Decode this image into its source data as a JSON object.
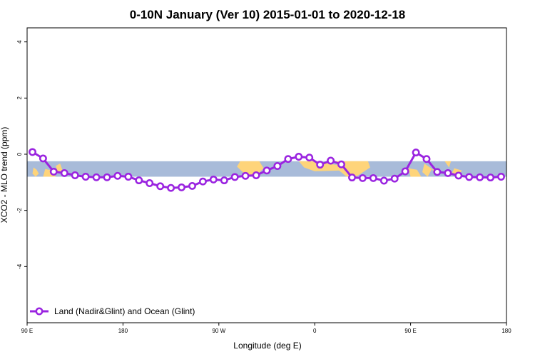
{
  "chart_data": {
    "type": "line",
    "title": "0-10N January (Ver 10)   2015-01-01 to 2020-12-18",
    "xlabel": "Longitude (deg E)",
    "ylabel": "XCO2 - MLO trend (ppm)",
    "xlim": [
      0,
      450
    ],
    "ylim": [
      -6,
      4.5
    ],
    "x_ticks": [
      {
        "value": 0,
        "label": "90 E"
      },
      {
        "value": 90,
        "label": "180"
      },
      {
        "value": 180,
        "label": "90 W"
      },
      {
        "value": 270,
        "label": "0"
      },
      {
        "value": 360,
        "label": "90 E"
      },
      {
        "value": 450,
        "label": "180"
      }
    ],
    "y_ticks": [
      {
        "value": -4,
        "label": "-4"
      },
      {
        "value": -2,
        "label": "-2"
      },
      {
        "value": 0,
        "label": "0"
      },
      {
        "value": 2,
        "label": "2"
      },
      {
        "value": 4,
        "label": "4"
      }
    ],
    "grid": false,
    "legend_position": "bottom-left",
    "background_band": {
      "y_range": [
        -0.8,
        -0.25
      ],
      "ocean_color": "#a8bbd9",
      "land_color": "#fed47a"
    },
    "series": [
      {
        "name": "Land (Nadir&Glint) and Ocean (Glint)",
        "color": "#9a24e0",
        "marker": "open-circle",
        "x": [
          5,
          15,
          25,
          35,
          45,
          55,
          65,
          75,
          85,
          95,
          105,
          115,
          125,
          135,
          145,
          155,
          165,
          175,
          185,
          195,
          205,
          215,
          225,
          235,
          245,
          255,
          265,
          275,
          285,
          295,
          305,
          315,
          325,
          335,
          345,
          355,
          365,
          375,
          385,
          395,
          405,
          415,
          425,
          435,
          445
        ],
        "y": [
          0.08,
          -0.15,
          -0.62,
          -0.67,
          -0.75,
          -0.8,
          -0.82,
          -0.82,
          -0.77,
          -0.8,
          -0.93,
          -1.03,
          -1.14,
          -1.2,
          -1.18,
          -1.13,
          -0.97,
          -0.9,
          -0.93,
          -0.81,
          -0.77,
          -0.75,
          -0.58,
          -0.42,
          -0.17,
          -0.09,
          -0.12,
          -0.37,
          -0.23,
          -0.36,
          -0.83,
          -0.85,
          -0.85,
          -0.94,
          -0.87,
          -0.61,
          0.06,
          -0.17,
          -0.63,
          -0.67,
          -0.76,
          -0.81,
          -0.82,
          -0.83,
          -0.8
        ]
      }
    ]
  }
}
